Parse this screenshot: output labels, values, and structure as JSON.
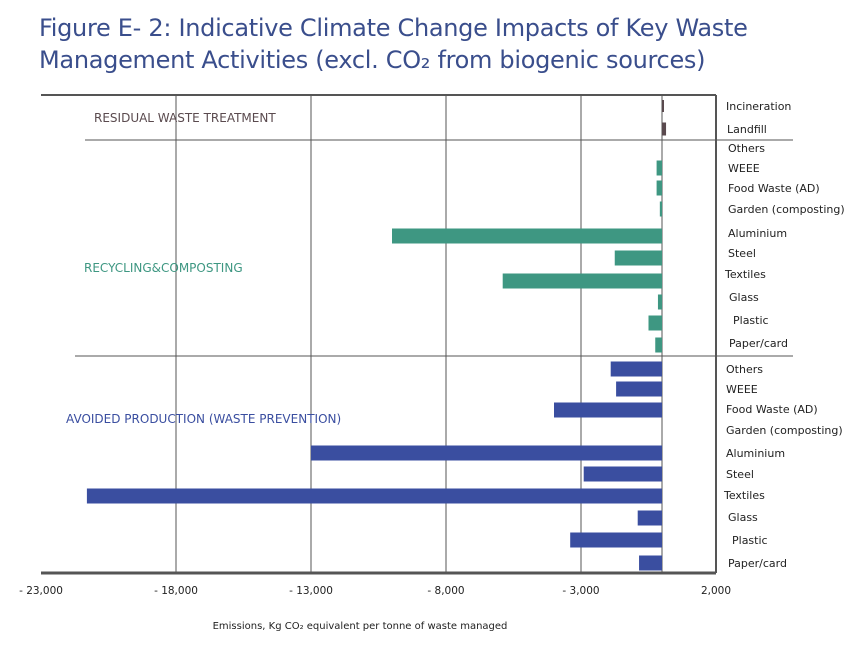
{
  "chart_data": {
    "type": "bar",
    "orientation": "horizontal",
    "title": "Figure E- 2: Indicative Climate Change Impacts of Key Waste Management Activities (excl. CO₂ from biogenic sources)",
    "title_lines": [
      "Figure E- 2: Indicative Climate Change Impacts of Key Waste",
      "Management Activities (excl. CO₂ from biogenic sources)"
    ],
    "xlabel": "Emissions, Kg CO₂ equivalent per tonne of waste managed",
    "ylabel": "",
    "xlim": [
      -23000,
      2000
    ],
    "x_ticks": [
      -23000,
      -18000,
      -13000,
      -8000,
      -3000,
      2000
    ],
    "x_tick_labels": [
      "- 23,000",
      "- 18,000",
      "- 13,000",
      "- 8,000",
      "- 3,000",
      "2,000"
    ],
    "grid": "vertical",
    "legend": "none",
    "groups": [
      {
        "name": "RESIDUAL WASTE TREATMENT",
        "color": "#5a4a4e",
        "categories": [
          "Incineration",
          "Landfill"
        ],
        "values": [
          50,
          150
        ]
      },
      {
        "name": "RECYCLING&COMPOSTING",
        "color": "#3e9782",
        "categories": [
          "Others",
          "WEEE",
          "Food Waste (AD)",
          "Garden (composting)",
          "Aluminium",
          "Steel",
          "Textiles",
          "Glass",
          "Plastic",
          "Paper/card"
        ],
        "values": [
          0,
          -200,
          -200,
          -80,
          -10000,
          -1750,
          -5900,
          -150,
          -500,
          -250
        ]
      },
      {
        "name": "AVOIDED PRODUCTION (WASTE PREVENTION)",
        "color": "#3a4ea0",
        "categories": [
          "Others",
          "WEEE",
          "Food Waste (AD)",
          "Garden (composting)",
          "Aluminium",
          "Steel",
          "Textiles",
          "Glass",
          "Plastic",
          "Paper/card"
        ],
        "values": [
          -1900,
          -1700,
          -4000,
          0,
          -13000,
          -2900,
          -21300,
          -900,
          -3400,
          -850
        ]
      }
    ]
  }
}
